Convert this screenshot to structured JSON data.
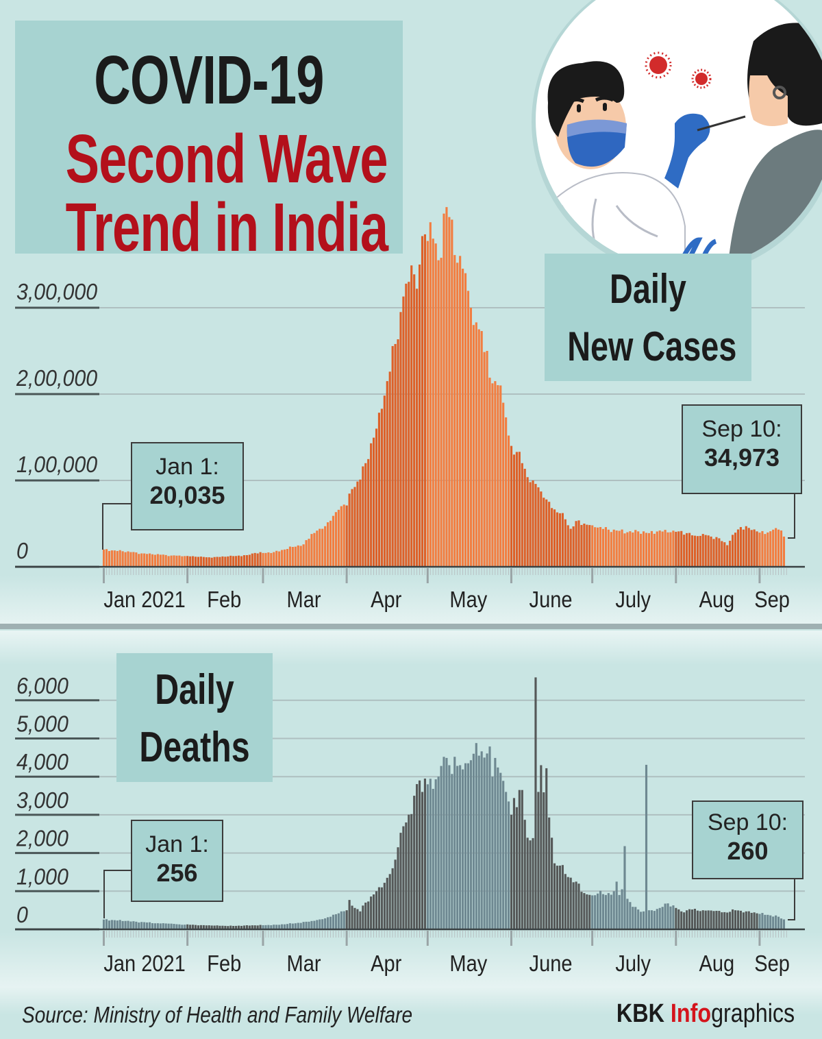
{
  "title": {
    "line1": "COVID-19",
    "line2": "Second Wave",
    "line3": "Trend in India"
  },
  "colors": {
    "background": "#c9e5e3",
    "box": "#a7d3d1",
    "title_red": "#b3101b",
    "cases_light": "#f27d40",
    "cases_dark": "#dd6028",
    "deaths_light": "#6e8891",
    "deaths_dark": "#555858"
  },
  "cases_panel": {
    "label_line1": "Daily",
    "label_line2": "New Cases",
    "callout_start": {
      "date": "Jan 1:",
      "value": "20,035"
    },
    "callout_end": {
      "date": "Sep 10:",
      "value": "34,973"
    }
  },
  "deaths_panel": {
    "label_line1": "Daily",
    "label_line2": "Deaths",
    "callout_start": {
      "date": "Jan 1:",
      "value": "256"
    },
    "callout_end": {
      "date": "Sep 10:",
      "value": "260"
    }
  },
  "footer": {
    "source": "Source: Ministry of Health and Family Welfare",
    "brand_kbk": "KBK ",
    "brand_info": "Info",
    "brand_graphics": "graphics"
  },
  "chart_data": [
    {
      "type": "bar",
      "title": "Daily New Cases",
      "unit": "cases (thousands)",
      "x_start": "2021-01-01",
      "x_end": "2021-09-10",
      "days": 253,
      "months": [
        "Jan 2021",
        "Feb",
        "Mar",
        "Apr",
        "May",
        "June",
        "July",
        "Aug",
        "Sep"
      ],
      "month_start_days": [
        0,
        31,
        59,
        90,
        120,
        151,
        181,
        212,
        243
      ],
      "yticks": [
        0,
        100,
        200,
        300
      ],
      "ytick_labels": [
        "0",
        "1,00,000",
        "2,00,000",
        "3,00,000"
      ],
      "ylim": [
        0,
        420
      ],
      "grid": true,
      "daily_values_anchors": [
        [
          0,
          20.0
        ],
        [
          3,
          19
        ],
        [
          7,
          18
        ],
        [
          10,
          17
        ],
        [
          14,
          15.5
        ],
        [
          18,
          14.5
        ],
        [
          21,
          14
        ],
        [
          25,
          13
        ],
        [
          28,
          13
        ],
        [
          31,
          12.5
        ],
        [
          35,
          11.5
        ],
        [
          39,
          11
        ],
        [
          42,
          11.5
        ],
        [
          46,
          12
        ],
        [
          49,
          12.5
        ],
        [
          53,
          13.5
        ],
        [
          56,
          16
        ],
        [
          59,
          16
        ],
        [
          63,
          17
        ],
        [
          67,
          20
        ],
        [
          70,
          23
        ],
        [
          74,
          26
        ],
        [
          77,
          38
        ],
        [
          80,
          44
        ],
        [
          82,
          47
        ],
        [
          85,
          59
        ],
        [
          87,
          66
        ],
        [
          89,
          72
        ],
        [
          90,
          71
        ],
        [
          92,
          90
        ],
        [
          95,
          101
        ],
        [
          97,
          120
        ],
        [
          99,
          143
        ],
        [
          101,
          160
        ],
        [
          103,
          183
        ],
        [
          105,
          215
        ],
        [
          108,
          258
        ],
        [
          110,
          295
        ],
        [
          111,
          313
        ],
        [
          113,
          330
        ],
        [
          114,
          349
        ],
        [
          116,
          322
        ],
        [
          117,
          350
        ],
        [
          119,
          385
        ],
        [
          121,
          399
        ],
        [
          122,
          380
        ],
        [
          124,
          355
        ],
        [
          126,
          409
        ],
        [
          128,
          405
        ],
        [
          129,
          402
        ],
        [
          130,
          361
        ],
        [
          132,
          360
        ],
        [
          134,
          340
        ],
        [
          136,
          300
        ],
        [
          137,
          280
        ],
        [
          139,
          275
        ],
        [
          140,
          273
        ],
        [
          142,
          250
        ],
        [
          143,
          219
        ],
        [
          145,
          215
        ],
        [
          147,
          210
        ],
        [
          148,
          190
        ],
        [
          150,
          152
        ],
        [
          151,
          140
        ],
        [
          153,
          133
        ],
        [
          155,
          120
        ],
        [
          158,
          98
        ],
        [
          159,
          100
        ],
        [
          161,
          92
        ],
        [
          163,
          80
        ],
        [
          166,
          68
        ],
        [
          169,
          62
        ],
        [
          171,
          55
        ],
        [
          173,
          44
        ],
        [
          175,
          53
        ],
        [
          178,
          50
        ],
        [
          181,
          48
        ],
        [
          184,
          46
        ],
        [
          187,
          43
        ],
        [
          190,
          42
        ],
        [
          194,
          40
        ],
        [
          198,
          41
        ],
        [
          202,
          39
        ],
        [
          206,
          42
        ],
        [
          210,
          40
        ],
        [
          213,
          41
        ],
        [
          216,
          39
        ],
        [
          219,
          36
        ],
        [
          222,
          38
        ],
        [
          225,
          35
        ],
        [
          228,
          33
        ],
        [
          231,
          25
        ],
        [
          233,
          37
        ],
        [
          236,
          46
        ],
        [
          239,
          45
        ],
        [
          242,
          41
        ],
        [
          245,
          38
        ],
        [
          248,
          43
        ],
        [
          251,
          42
        ],
        [
          252,
          34.973
        ]
      ]
    },
    {
      "type": "bar",
      "title": "Daily Deaths",
      "unit": "deaths",
      "x_start": "2021-01-01",
      "x_end": "2021-09-10",
      "days": 253,
      "months": [
        "Jan 2021",
        "Feb",
        "Mar",
        "Apr",
        "May",
        "June",
        "July",
        "Aug",
        "Sep"
      ],
      "month_start_days": [
        0,
        31,
        59,
        90,
        120,
        151,
        181,
        212,
        243
      ],
      "yticks": [
        0,
        1000,
        2000,
        3000,
        4000,
        5000,
        6000
      ],
      "ytick_labels": [
        "0",
        "1,000",
        "2,000",
        "3,000",
        "4,000",
        "5,000",
        "6,000"
      ],
      "ylim": [
        0,
        6700
      ],
      "grid": true,
      "daily_values_anchors": [
        [
          0,
          256
        ],
        [
          4,
          240
        ],
        [
          8,
          220
        ],
        [
          12,
          200
        ],
        [
          16,
          180
        ],
        [
          20,
          160
        ],
        [
          24,
          150
        ],
        [
          28,
          130
        ],
        [
          32,
          120
        ],
        [
          36,
          110
        ],
        [
          40,
          100
        ],
        [
          44,
          95
        ],
        [
          48,
          90
        ],
        [
          52,
          100
        ],
        [
          56,
          105
        ],
        [
          60,
          110
        ],
        [
          64,
          120
        ],
        [
          68,
          140
        ],
        [
          72,
          170
        ],
        [
          76,
          200
        ],
        [
          80,
          260
        ],
        [
          84,
          330
        ],
        [
          87,
          420
        ],
        [
          88,
          470
        ],
        [
          90,
          500
        ],
        [
          91,
          770
        ],
        [
          92,
          620
        ],
        [
          95,
          470
        ],
        [
          97,
          700
        ],
        [
          99,
          860
        ],
        [
          101,
          1000
        ],
        [
          103,
          1100
        ],
        [
          105,
          1350
        ],
        [
          107,
          1600
        ],
        [
          109,
          2150
        ],
        [
          111,
          2700
        ],
        [
          112,
          2800
        ],
        [
          114,
          3020
        ],
        [
          115,
          3500
        ],
        [
          117,
          3900
        ],
        [
          118,
          3600
        ],
        [
          119,
          3950
        ],
        [
          120,
          3800
        ],
        [
          122,
          3680
        ],
        [
          124,
          4000
        ],
        [
          125,
          4280
        ],
        [
          127,
          4490
        ],
        [
          128,
          4300
        ],
        [
          129,
          4070
        ],
        [
          130,
          4520
        ],
        [
          132,
          4300
        ],
        [
          133,
          4190
        ],
        [
          135,
          4350
        ],
        [
          136,
          4430
        ],
        [
          137,
          4600
        ],
        [
          138,
          4880
        ],
        [
          139,
          4550
        ],
        [
          141,
          4500
        ],
        [
          143,
          4790
        ],
        [
          144,
          4000
        ],
        [
          145,
          4490
        ],
        [
          147,
          4100
        ],
        [
          148,
          3890
        ],
        [
          149,
          3600
        ],
        [
          150,
          3350
        ],
        [
          151,
          3000
        ],
        [
          152,
          3440
        ],
        [
          153,
          3200
        ],
        [
          155,
          3650
        ],
        [
          156,
          2870
        ],
        [
          157,
          2400
        ],
        [
          158,
          2330
        ],
        [
          159,
          2390
        ],
        [
          160,
          6600
        ],
        [
          161,
          3600
        ],
        [
          162,
          4300
        ],
        [
          163,
          3590
        ],
        [
          164,
          4220
        ],
        [
          165,
          2930
        ],
        [
          166,
          2400
        ],
        [
          167,
          1730
        ],
        [
          169,
          1670
        ],
        [
          171,
          1450
        ],
        [
          172,
          1370
        ],
        [
          175,
          1250
        ],
        [
          178,
          950
        ],
        [
          181,
          890
        ],
        [
          184,
          1010
        ],
        [
          186,
          900
        ],
        [
          187,
          950
        ],
        [
          189,
          1000
        ],
        [
          190,
          1250
        ],
        [
          191,
          900
        ],
        [
          192,
          1050
        ],
        [
          193,
          2180
        ],
        [
          194,
          800
        ],
        [
          196,
          590
        ],
        [
          198,
          520
        ],
        [
          200,
          470
        ],
        [
          201,
          4310
        ],
        [
          202,
          500
        ],
        [
          203,
          500
        ],
        [
          206,
          560
        ],
        [
          209,
          680
        ],
        [
          212,
          560
        ],
        [
          214,
          470
        ],
        [
          218,
          520
        ],
        [
          222,
          500
        ],
        [
          226,
          480
        ],
        [
          230,
          450
        ],
        [
          234,
          500
        ],
        [
          238,
          470
        ],
        [
          242,
          420
        ],
        [
          246,
          380
        ],
        [
          250,
          330
        ],
        [
          252,
          260
        ]
      ]
    }
  ]
}
